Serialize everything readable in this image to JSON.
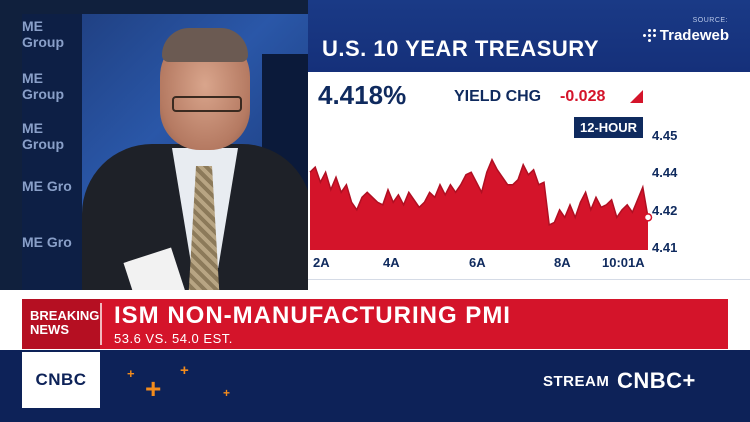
{
  "video": {
    "wall_texts": [
      "ME Group",
      "ME Group",
      "ME Group",
      "ME Gro",
      "ME Gro"
    ]
  },
  "chart_panel": {
    "title": "U.S. 10 YEAR TREASURY",
    "source_label": "SOURCE:",
    "source_name": "Tradeweb",
    "yield_value": "4.418%",
    "yield_chg_label": "YIELD CHG",
    "yield_chg_value": "-0.028",
    "interval": "12-HOUR",
    "colors": {
      "series": "#d4142a",
      "panel": "#112a66",
      "text": "#0f2a5e"
    }
  },
  "chart_data": {
    "type": "area",
    "title": "U.S. 10 YEAR TREASURY",
    "xlabel": "",
    "ylabel": "",
    "x_ticks": [
      "2A",
      "4A",
      "6A",
      "8A",
      "10:01A"
    ],
    "y_ticks": [
      "4.45",
      "4.44",
      "4.42",
      "4.41"
    ],
    "ylim": [
      4.405,
      4.452
    ],
    "series": [
      {
        "values": [
          4.436,
          4.438,
          4.432,
          4.436,
          4.429,
          4.434,
          4.428,
          4.431,
          4.424,
          4.421,
          4.426,
          4.428,
          4.426,
          4.424,
          4.423,
          4.429,
          4.424,
          4.427,
          4.423,
          4.428,
          4.425,
          4.422,
          4.424,
          4.428,
          4.426,
          4.431,
          4.427,
          4.431,
          4.428,
          4.431,
          4.435,
          4.436,
          4.432,
          4.428,
          4.436,
          4.441,
          4.437,
          4.434,
          4.431,
          4.431,
          4.433,
          4.439,
          4.435,
          4.437,
          4.431,
          4.432,
          4.415,
          4.416,
          4.421,
          4.418,
          4.423,
          4.418,
          4.424,
          4.428,
          4.421,
          4.426,
          4.422,
          4.423,
          4.425,
          4.418,
          4.421,
          4.423,
          4.42,
          4.425,
          4.43,
          4.418
        ]
      }
    ]
  },
  "lower_third": {
    "breaking_line1": "BREAKING",
    "breaking_line2": "NEWS",
    "headline": "ISM NON-MANUFACTURING PMI",
    "subheadline": "53.6 VS. 54.0 EST."
  },
  "bottom_bar": {
    "network_logo": "CNBC",
    "stream_label": "STREAM",
    "stream_brand": "CNBC+"
  }
}
